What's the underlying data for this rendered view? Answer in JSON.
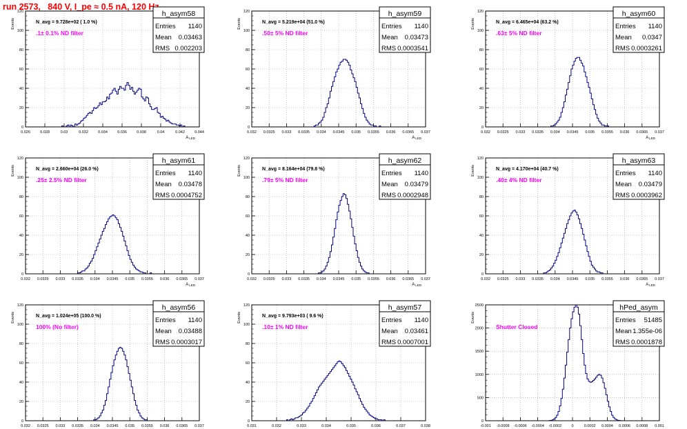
{
  "page_title": "run 2573,   840 V, I_pe ≈ 0.5 nA, 120 Hz",
  "colors": {
    "title": "#ff0000",
    "note": "#ff00ff",
    "hist": "#000080",
    "grid": "#999999",
    "axis": "#000000"
  },
  "common": {
    "ylabel": "Events",
    "xlabel": "A",
    "xlabel_sub": "LED",
    "stat_labels": [
      "Entries",
      "Mean",
      "RMS"
    ]
  },
  "chart_data": [
    {
      "type": "bar",
      "hist": "h_asym58",
      "title": "h_asym58",
      "navg": "N_avg = 9.728e+02 ( 1.0 %)",
      "note": ".1± 0.1% ND filter",
      "stats": {
        "entries": "1140",
        "mean": "0.03463",
        "rms": "0.002203"
      },
      "xlim": [
        0.026,
        0.044
      ],
      "ylim": [
        0,
        120
      ],
      "xticks": [
        "0.026",
        "0.028",
        "0.03",
        "0.032",
        "0.034",
        "0.036",
        "0.038",
        "0.04",
        "0.042",
        "0.044"
      ],
      "yticks": [
        "0",
        "20",
        "40",
        "60",
        "80",
        "100",
        "120"
      ],
      "values": [
        0,
        0,
        0,
        0,
        0,
        0,
        0,
        0,
        0,
        0,
        0,
        0,
        0,
        0,
        0,
        0,
        0,
        0,
        0,
        0,
        0,
        0,
        0,
        0,
        0,
        1,
        0,
        0,
        1,
        2,
        0,
        2,
        1,
        0,
        3,
        2,
        3,
        4,
        6,
        7,
        9,
        10,
        12,
        14,
        15,
        14,
        17,
        20,
        19,
        20,
        22,
        25,
        23,
        26,
        26,
        27,
        31,
        29,
        34,
        35,
        38,
        40,
        37,
        34,
        39,
        42,
        40,
        40,
        38,
        43,
        46,
        43,
        39,
        41,
        37,
        34,
        36,
        38,
        40,
        39,
        31,
        29,
        27,
        31,
        30,
        24,
        21,
        18,
        18,
        19,
        20,
        15,
        14,
        10,
        11,
        9,
        8,
        6,
        7,
        5,
        4,
        3,
        3,
        3,
        2,
        2,
        1,
        2,
        0,
        1,
        0,
        0,
        0,
        0,
        0,
        0,
        0,
        0,
        0,
        0
      ]
    },
    {
      "type": "bar",
      "hist": "h_asym59",
      "title": "h_asym59",
      "navg": "N_avg = 5.219e+04 (51.0 %)",
      "note": ".50± 5% ND filter",
      "stats": {
        "entries": "1140",
        "mean": "0.03473",
        "rms": "0.0003541"
      },
      "xlim": [
        0.032,
        0.037
      ],
      "ylim": [
        0,
        120
      ],
      "xticks": [
        "0.032",
        "0.0325",
        "0.033",
        "0.0335",
        "0.034",
        "0.0345",
        "0.035",
        "0.0355",
        "0.036",
        "0.0365",
        "0.037"
      ],
      "yticks": [
        "0",
        "20",
        "40",
        "60",
        "80",
        "100",
        "120"
      ],
      "values": [
        0,
        0,
        0,
        0,
        0,
        0,
        0,
        0,
        0,
        0,
        0,
        0,
        0,
        0,
        0,
        0,
        0,
        0,
        0,
        0,
        0,
        0,
        0,
        0,
        0,
        0,
        0,
        0,
        0,
        0,
        0,
        0,
        0,
        0,
        0,
        0,
        0,
        0,
        0,
        0,
        0,
        0,
        0,
        1,
        2,
        2,
        4,
        5,
        7,
        10,
        15,
        20,
        24,
        30,
        37,
        42,
        47,
        52,
        57,
        60,
        64,
        67,
        68,
        70,
        70,
        69,
        67,
        64,
        59,
        55,
        51,
        47,
        41,
        35,
        30,
        24,
        19,
        14,
        10,
        7,
        5,
        3,
        2,
        2,
        1,
        1,
        0,
        0,
        1,
        0,
        0,
        0,
        0,
        0,
        0,
        0,
        0,
        0,
        0,
        0,
        0,
        0,
        0,
        0,
        0,
        0,
        0,
        0,
        0,
        0,
        0,
        0,
        0,
        0,
        0,
        0,
        0,
        0,
        0,
        0
      ]
    },
    {
      "type": "bar",
      "hist": "h_asym60",
      "title": "h_asym60",
      "navg": "N_avg = 6.465e+04 (63.2 %)",
      "note": ".63± 5% ND filter",
      "stats": {
        "entries": "1140",
        "mean": "0.0347",
        "rms": "0.0003261"
      },
      "xlim": [
        0.032,
        0.037
      ],
      "ylim": [
        0,
        120
      ],
      "xticks": [
        "0.032",
        "0.0325",
        "0.033",
        "0.0335",
        "0.034",
        "0.0345",
        "0.035",
        "0.0355",
        "0.036",
        "0.0365",
        "0.037"
      ],
      "yticks": [
        "0",
        "20",
        "40",
        "60",
        "80",
        "100",
        "120"
      ],
      "values": [
        0,
        0,
        0,
        0,
        0,
        0,
        0,
        0,
        0,
        0,
        0,
        0,
        0,
        0,
        0,
        0,
        0,
        0,
        0,
        0,
        0,
        0,
        0,
        0,
        0,
        0,
        0,
        0,
        0,
        0,
        0,
        0,
        0,
        0,
        0,
        0,
        0,
        0,
        0,
        0,
        0,
        0,
        0,
        0,
        0,
        1,
        1,
        2,
        3,
        5,
        7,
        10,
        15,
        20,
        26,
        33,
        39,
        46,
        53,
        60,
        64,
        68,
        71,
        72,
        72,
        69,
        66,
        63,
        57,
        52,
        46,
        41,
        35,
        29,
        23,
        18,
        13,
        9,
        6,
        4,
        2,
        2,
        1,
        1,
        1,
        0,
        0,
        0,
        0,
        0,
        0,
        0,
        0,
        0,
        0,
        0,
        0,
        0,
        0,
        0,
        0,
        0,
        0,
        0,
        0,
        0,
        0,
        0,
        0,
        0,
        0,
        0,
        0,
        0,
        0,
        0,
        0,
        0,
        0,
        0
      ]
    },
    {
      "type": "bar",
      "hist": "h_asym61",
      "title": "h_asym61",
      "navg": "N_avg = 2.660e+04 (26.0 %)",
      "note": ".25± 2.5% ND filter",
      "stats": {
        "entries": "1140",
        "mean": "0.03478",
        "rms": "0.0004752"
      },
      "xlim": [
        0.032,
        0.037
      ],
      "ylim": [
        0,
        120
      ],
      "xticks": [
        "0.032",
        "0.0325",
        "0.033",
        "0.0335",
        "0.034",
        "0.0345",
        "0.035",
        "0.0355",
        "0.036",
        "0.0365",
        "0.037"
      ],
      "yticks": [
        "0",
        "20",
        "40",
        "60",
        "80",
        "100",
        "120"
      ],
      "values": [
        0,
        0,
        0,
        0,
        0,
        0,
        0,
        0,
        0,
        0,
        0,
        0,
        0,
        0,
        0,
        0,
        0,
        0,
        0,
        0,
        0,
        0,
        0,
        0,
        0,
        0,
        0,
        0,
        0,
        0,
        0,
        0,
        0,
        0,
        0,
        0,
        1,
        1,
        2,
        3,
        3,
        5,
        6,
        8,
        11,
        13,
        16,
        20,
        24,
        28,
        32,
        36,
        40,
        44,
        47,
        51,
        54,
        57,
        59,
        60,
        61,
        60,
        58,
        56,
        52,
        48,
        44,
        39,
        34,
        29,
        24,
        19,
        15,
        12,
        9,
        7,
        5,
        4,
        3,
        2,
        2,
        1,
        1,
        0,
        0,
        0,
        1,
        0,
        0,
        0,
        0,
        0,
        0,
        0,
        0,
        0,
        0,
        0,
        0,
        0,
        0,
        0,
        0,
        0,
        0,
        0,
        0,
        0,
        0,
        0,
        0,
        0,
        0,
        0,
        0,
        0,
        0,
        0,
        0,
        0
      ]
    },
    {
      "type": "bar",
      "hist": "h_asym62",
      "title": "h_asym62",
      "navg": "N_avg = 8.164e+04 (79.8 %)",
      "note": ".79± 5% ND filter",
      "stats": {
        "entries": "1140",
        "mean": "0.03479",
        "rms": "0.0002948"
      },
      "xlim": [
        0.032,
        0.037
      ],
      "ylim": [
        0,
        120
      ],
      "xticks": [
        "0.032",
        "0.0325",
        "0.033",
        "0.0335",
        "0.034",
        "0.0345",
        "0.035",
        "0.0355",
        "0.036",
        "0.0365",
        "0.037"
      ],
      "yticks": [
        "0",
        "20",
        "40",
        "60",
        "80",
        "100",
        "120"
      ],
      "values": [
        0,
        0,
        0,
        0,
        0,
        0,
        0,
        0,
        0,
        0,
        0,
        0,
        0,
        0,
        0,
        0,
        0,
        0,
        0,
        0,
        0,
        0,
        0,
        0,
        0,
        0,
        0,
        0,
        0,
        0,
        0,
        0,
        0,
        0,
        0,
        0,
        0,
        0,
        0,
        0,
        0,
        0,
        0,
        0,
        0,
        0,
        1,
        1,
        2,
        3,
        5,
        8,
        12,
        17,
        23,
        30,
        38,
        47,
        56,
        64,
        71,
        76,
        80,
        83,
        82,
        78,
        72,
        65,
        57,
        48,
        39,
        31,
        24,
        17,
        12,
        8,
        5,
        3,
        2,
        1,
        1,
        0,
        0,
        0,
        0,
        0,
        0,
        0,
        0,
        0,
        0,
        0,
        0,
        0,
        0,
        0,
        0,
        0,
        0,
        0,
        0,
        0,
        0,
        0,
        0,
        0,
        0,
        0,
        0,
        0,
        0,
        0,
        0,
        0,
        0,
        0,
        0,
        0,
        0,
        0
      ]
    },
    {
      "type": "bar",
      "hist": "h_asym63",
      "title": "h_asym63",
      "navg": "N_avg = 4.170e+04 (40.7 %)",
      "note": ".40± 4% ND filter",
      "stats": {
        "entries": "1140",
        "mean": "0.03479",
        "rms": "0.0003962"
      },
      "xlim": [
        0.032,
        0.037
      ],
      "ylim": [
        0,
        120
      ],
      "xticks": [
        "0.032",
        "0.0325",
        "0.033",
        "0.0335",
        "0.034",
        "0.0345",
        "0.035",
        "0.0355",
        "0.036",
        "0.0365",
        "0.037"
      ],
      "yticks": [
        "0",
        "20",
        "40",
        "60",
        "80",
        "100",
        "120"
      ],
      "values": [
        0,
        0,
        0,
        0,
        0,
        0,
        0,
        0,
        0,
        0,
        0,
        0,
        0,
        0,
        0,
        0,
        0,
        0,
        0,
        0,
        0,
        0,
        0,
        0,
        0,
        0,
        0,
        0,
        0,
        0,
        0,
        0,
        0,
        0,
        0,
        0,
        0,
        0,
        0,
        0,
        1,
        1,
        2,
        3,
        4,
        6,
        8,
        11,
        14,
        18,
        22,
        27,
        32,
        37,
        42,
        47,
        52,
        56,
        60,
        63,
        65,
        66,
        64,
        61,
        57,
        52,
        47,
        41,
        35,
        29,
        23,
        18,
        13,
        9,
        7,
        5,
        3,
        2,
        2,
        1,
        1,
        0,
        0,
        0,
        0,
        0,
        0,
        0,
        0,
        0,
        0,
        0,
        0,
        0,
        0,
        0,
        0,
        0,
        0,
        0,
        0,
        0,
        0,
        0,
        0,
        0,
        0,
        0,
        0,
        0,
        0,
        0,
        0,
        0,
        0,
        0,
        0,
        0,
        0,
        0
      ]
    },
    {
      "type": "bar",
      "hist": "h_asym56",
      "title": "h_asym56",
      "navg": "N_avg = 1.024e+05 (100.0 %)",
      "note": "100% (No filter)",
      "stats": {
        "entries": "1140",
        "mean": "0.03488",
        "rms": "0.0003017"
      },
      "xlim": [
        0.032,
        0.037
      ],
      "ylim": [
        0,
        120
      ],
      "xticks": [
        "0.032",
        "0.0325",
        "0.033",
        "0.0335",
        "0.034",
        "0.0345",
        "0.035",
        "0.0355",
        "0.036",
        "0.0365",
        "0.037"
      ],
      "yticks": [
        "0",
        "20",
        "40",
        "60",
        "80",
        "100",
        "120"
      ],
      "values": [
        0,
        0,
        0,
        0,
        0,
        0,
        0,
        0,
        0,
        0,
        0,
        0,
        0,
        0,
        0,
        0,
        0,
        0,
        0,
        0,
        0,
        0,
        0,
        0,
        0,
        0,
        0,
        0,
        0,
        0,
        0,
        0,
        0,
        0,
        0,
        0,
        0,
        0,
        0,
        0,
        0,
        0,
        0,
        0,
        0,
        0,
        0,
        1,
        1,
        2,
        3,
        5,
        8,
        11,
        16,
        21,
        28,
        35,
        43,
        50,
        57,
        63,
        68,
        72,
        75,
        76,
        75,
        72,
        68,
        63,
        56,
        49,
        42,
        35,
        28,
        21,
        16,
        11,
        8,
        5,
        3,
        2,
        1,
        1,
        0,
        0,
        0,
        0,
        0,
        0,
        0,
        0,
        0,
        0,
        0,
        0,
        0,
        0,
        0,
        0,
        0,
        0,
        0,
        0,
        0,
        0,
        0,
        0,
        0,
        0,
        0,
        0,
        0,
        0,
        0,
        0,
        0,
        0,
        0,
        0
      ]
    },
    {
      "type": "bar",
      "hist": "h_asym57",
      "title": "h_asym57",
      "navg": "N_avg = 9.793e+03 ( 9.6 %)",
      "note": ".10± 1% ND filter",
      "stats": {
        "entries": "1140",
        "mean": "0.03461",
        "rms": "0.0007001"
      },
      "xlim": [
        0.031,
        0.038
      ],
      "ylim": [
        0,
        120
      ],
      "xticks": [
        "0.031",
        "0.032",
        "0.033",
        "0.034",
        "0.035",
        "0.036",
        "0.037",
        "0.038"
      ],
      "yticks": [
        "0",
        "20",
        "40",
        "60",
        "80",
        "100",
        "120"
      ],
      "values": [
        0,
        0,
        0,
        0,
        0,
        0,
        0,
        0,
        0,
        0,
        0,
        0,
        0,
        0,
        0,
        0,
        0,
        0,
        0,
        0,
        0,
        0,
        0,
        0,
        1,
        0,
        1,
        2,
        1,
        2,
        3,
        3,
        4,
        5,
        6,
        8,
        9,
        11,
        13,
        15,
        18,
        20,
        23,
        26,
        29,
        32,
        35,
        37,
        39,
        41,
        43,
        45,
        47,
        49,
        51,
        53,
        55,
        57,
        59,
        61,
        62,
        61,
        59,
        57,
        55,
        52,
        49,
        46,
        43,
        40,
        37,
        33,
        30,
        27,
        23,
        20,
        17,
        14,
        12,
        10,
        8,
        6,
        5,
        4,
        3,
        2,
        2,
        1,
        1,
        1,
        0,
        1,
        0,
        0,
        0,
        0,
        0,
        0,
        0,
        0,
        0,
        0,
        0,
        0,
        0,
        0,
        0,
        0,
        0,
        0,
        0,
        0,
        0,
        0,
        0,
        0,
        0,
        0,
        0,
        0
      ]
    },
    {
      "type": "bar",
      "hist": "hPed_asym",
      "title": "hPed_asym",
      "navg": "",
      "note": "Shutter Closed",
      "stats": {
        "entries": "51485",
        "mean": "1.355e-06",
        "rms": "0.0001878"
      },
      "xlim": [
        -0.001,
        0.001
      ],
      "ylim": [
        0,
        2500
      ],
      "xticks": [
        "-0.001",
        "-0.0008",
        "-0.0006",
        "-0.0004",
        "-0.0002",
        "0",
        "0.0002",
        "0.0004",
        "0.0006",
        "0.0008",
        "0.001"
      ],
      "yticks": [
        "0",
        "500",
        "1000",
        "1500",
        "2000",
        "2500"
      ],
      "values": [
        0,
        0,
        0,
        0,
        0,
        0,
        0,
        0,
        0,
        0,
        0,
        0,
        0,
        0,
        0,
        0,
        0,
        0,
        0,
        0,
        0,
        0,
        0,
        0,
        0,
        0,
        0,
        0,
        0,
        0,
        0,
        0,
        0,
        0,
        0,
        0,
        0,
        0,
        0,
        0,
        0,
        0,
        0,
        0,
        5,
        10,
        20,
        40,
        70,
        120,
        200,
        320,
        480,
        680,
        920,
        1200,
        1480,
        1750,
        2000,
        2200,
        2350,
        2450,
        2500,
        2450,
        2300,
        2050,
        1750,
        1450,
        1200,
        1020,
        900,
        850,
        830,
        840,
        870,
        900,
        940,
        980,
        1000,
        980,
        920,
        820,
        700,
        560,
        420,
        300,
        200,
        120,
        70,
        40,
        20,
        10,
        5,
        2,
        1,
        0,
        0,
        0,
        0,
        0,
        0,
        0,
        0,
        0,
        0,
        0,
        0,
        0,
        0,
        0,
        0,
        0,
        0,
        0,
        0,
        0,
        0,
        0,
        0,
        0
      ]
    }
  ]
}
